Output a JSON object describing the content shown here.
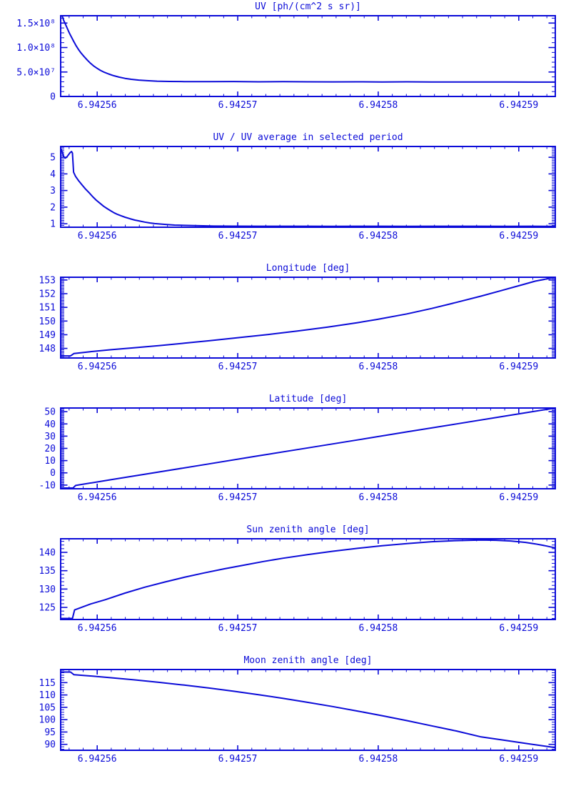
{
  "page": {
    "background": "#ffffff",
    "accent": "#0b0bd8",
    "plot_count": 6
  },
  "axes_shared": {
    "xlim": [
      6.9425574,
      6.9425926
    ],
    "x_major_ticks": [
      {
        "v": 6.94256,
        "label": "6.94256"
      },
      {
        "v": 6.94257,
        "label": "6.94257"
      },
      {
        "v": 6.94258,
        "label": "6.94258"
      },
      {
        "v": 6.94259,
        "label": "6.94259"
      }
    ],
    "x_minor_step": 1e-06
  },
  "chart_data": [
    {
      "type": "line",
      "title": "UV [ph/(cm^2 s sr)]",
      "xlabel": "",
      "ylabel": "",
      "xlim": [
        6.9425574,
        6.9425926
      ],
      "ylim": [
        0,
        165000000
      ],
      "grid": false,
      "legend": "none",
      "yticks": [
        {
          "v": 0,
          "label": "0"
        },
        {
          "v": 50000000,
          "label": "5.0×10⁷"
        },
        {
          "v": 100000000,
          "label": "1.0×10⁸"
        },
        {
          "v": 150000000,
          "label": "1.5×10⁸"
        }
      ],
      "y_minor_step": 10000000,
      "series": [
        {
          "name": "UV",
          "points": [
            [
              6.9425575,
              165000000
            ],
            [
              6.94255761,
              156000000
            ],
            [
              6.94255775,
              147000000
            ],
            [
              6.94255789,
              138000000
            ],
            [
              6.94255803,
              129000000
            ],
            [
              6.94255817,
              121000000
            ],
            [
              6.94255832,
              113000000
            ],
            [
              6.94255849,
              104000000
            ],
            [
              6.94255867,
              96000000
            ],
            [
              6.94255884,
              89000000
            ],
            [
              6.94255905,
              82000000
            ],
            [
              6.94255927,
              75000000
            ],
            [
              6.94255948,
              69000000
            ],
            [
              6.94255972,
              63000000
            ],
            [
              6.94255997,
              58000000
            ],
            [
              6.94256022,
              53500000
            ],
            [
              6.9425605,
              49500000
            ],
            [
              6.94256081,
              46000000
            ],
            [
              6.94256117,
              42500000
            ],
            [
              6.94256155,
              39500000
            ],
            [
              6.94256198,
              37000000
            ],
            [
              6.94256243,
              35000000
            ],
            [
              6.94256296,
              33500000
            ],
            [
              6.94256356,
              32200000
            ],
            [
              6.94256426,
              31300000
            ],
            [
              6.94256514,
              30700000
            ],
            [
              6.9425662,
              30400000
            ],
            [
              6.94256796,
              30200000
            ],
            [
              6.94256972,
              30500000
            ],
            [
              6.94257148,
              30000000
            ],
            [
              6.94257324,
              30300000
            ],
            [
              6.942575,
              30000000
            ],
            [
              6.94257676,
              29800000
            ],
            [
              6.94257852,
              30000000
            ],
            [
              6.94258028,
              29700000
            ],
            [
              6.94258204,
              29900000
            ],
            [
              6.9425838,
              29600000
            ],
            [
              6.94258556,
              29700000
            ],
            [
              6.94258732,
              29500000
            ],
            [
              6.94258908,
              29600000
            ],
            [
              6.94259084,
              29400000
            ],
            [
              6.9425926,
              29300000
            ]
          ]
        }
      ]
    },
    {
      "type": "line",
      "title": "UV / UV average in selected period",
      "xlabel": "",
      "ylabel": "",
      "xlim": [
        6.9425574,
        6.9425926
      ],
      "ylim": [
        0.79,
        5.65
      ],
      "grid": false,
      "legend": "none",
      "yticks": [
        {
          "v": 1,
          "label": "1"
        },
        {
          "v": 2,
          "label": "2"
        },
        {
          "v": 3,
          "label": "3"
        },
        {
          "v": 4,
          "label": "4"
        },
        {
          "v": 5,
          "label": "5"
        }
      ],
      "y_minor_step": 0.1,
      "series": [
        {
          "name": "UV ratio",
          "points": [
            [
              6.9425574,
              5.55
            ],
            [
              6.94255751,
              5.3
            ],
            [
              6.94255761,
              5.05
            ],
            [
              6.94255772,
              4.95
            ],
            [
              6.94255782,
              5.0
            ],
            [
              6.94255793,
              5.12
            ],
            [
              6.94255807,
              5.28
            ],
            [
              6.94255817,
              5.35
            ],
            [
              6.94255824,
              5.25
            ],
            [
              6.94255832,
              4.1
            ],
            [
              6.94255846,
              3.85
            ],
            [
              6.94255867,
              3.6
            ],
            [
              6.94255891,
              3.35
            ],
            [
              6.94255916,
              3.1
            ],
            [
              6.94255944,
              2.85
            ],
            [
              6.94255969,
              2.62
            ],
            [
              6.94255993,
              2.42
            ],
            [
              6.94256022,
              2.22
            ],
            [
              6.94256046,
              2.05
            ],
            [
              6.94256071,
              1.91
            ],
            [
              6.94256096,
              1.78
            ],
            [
              6.9425612,
              1.66
            ],
            [
              6.94256145,
              1.56
            ],
            [
              6.94256173,
              1.47
            ],
            [
              6.94256198,
              1.39
            ],
            [
              6.94256233,
              1.3
            ],
            [
              6.94256268,
              1.22
            ],
            [
              6.94256303,
              1.16
            ],
            [
              6.94256338,
              1.1
            ],
            [
              6.94256374,
              1.05
            ],
            [
              6.94256409,
              1.01
            ],
            [
              6.94256479,
              0.96
            ],
            [
              6.9425655,
              0.92
            ],
            [
              6.9425662,
              0.9
            ],
            [
              6.94256726,
              0.88
            ],
            [
              6.94256831,
              0.86
            ],
            [
              6.94256972,
              0.855
            ],
            [
              6.94257148,
              0.85
            ],
            [
              6.94257324,
              0.85
            ],
            [
              6.942575,
              0.85
            ],
            [
              6.94257676,
              0.84
            ],
            [
              6.94257852,
              0.85
            ],
            [
              6.94258028,
              0.85
            ],
            [
              6.94258204,
              0.84
            ],
            [
              6.9425838,
              0.85
            ],
            [
              6.94258556,
              0.85
            ],
            [
              6.94258732,
              0.85
            ],
            [
              6.94258908,
              0.84
            ],
            [
              6.94259084,
              0.85
            ],
            [
              6.9425926,
              0.84
            ]
          ]
        }
      ]
    },
    {
      "type": "line",
      "title": "Longitude [deg]",
      "xlabel": "",
      "ylabel": "",
      "xlim": [
        6.9425574,
        6.9425926
      ],
      "ylim": [
        147.3,
        153.2
      ],
      "grid": false,
      "legend": "none",
      "yticks": [
        {
          "v": 148,
          "label": "148"
        },
        {
          "v": 149,
          "label": "149"
        },
        {
          "v": 150,
          "label": "150"
        },
        {
          "v": 151,
          "label": "151"
        },
        {
          "v": 152,
          "label": "152"
        },
        {
          "v": 153,
          "label": "153"
        }
      ],
      "y_minor_step": 0.1,
      "series": [
        {
          "name": "Longitude",
          "points": [
            [
              6.9425574,
              147.45
            ],
            [
              6.9425581,
              147.45
            ],
            [
              6.94255835,
              147.63
            ],
            [
              6.94255951,
              147.76
            ],
            [
              6.94256092,
              147.9
            ],
            [
              6.94256268,
              148.05
            ],
            [
              6.94256444,
              148.21
            ],
            [
              6.9425662,
              148.38
            ],
            [
              6.94256796,
              148.56
            ],
            [
              6.94257007,
              148.79
            ],
            [
              6.94257218,
              149.02
            ],
            [
              6.9425743,
              149.28
            ],
            [
              6.94257641,
              149.56
            ],
            [
              6.94257852,
              149.88
            ],
            [
              6.94257993,
              150.12
            ],
            [
              6.94258204,
              150.52
            ],
            [
              6.9425838,
              150.92
            ],
            [
              6.94258556,
              151.36
            ],
            [
              6.94258732,
              151.82
            ],
            [
              6.94258873,
              152.22
            ],
            [
              6.94259014,
              152.62
            ],
            [
              6.94259119,
              152.92
            ],
            [
              6.9425919,
              153.06
            ],
            [
              6.9425926,
              153.2
            ]
          ]
        }
      ]
    },
    {
      "type": "line",
      "title": "Latitude [deg]",
      "xlabel": "",
      "ylabel": "",
      "xlim": [
        6.9425574,
        6.9425926
      ],
      "ylim": [
        -13,
        53
      ],
      "grid": false,
      "legend": "none",
      "yticks": [
        {
          "v": -10,
          "label": "-10"
        },
        {
          "v": 0,
          "label": "0"
        },
        {
          "v": 10,
          "label": "10"
        },
        {
          "v": 20,
          "label": "20"
        },
        {
          "v": 30,
          "label": "30"
        },
        {
          "v": 40,
          "label": "40"
        },
        {
          "v": 50,
          "label": "50"
        }
      ],
      "y_minor_step": 1,
      "series": [
        {
          "name": "Latitude",
          "points": [
            [
              6.9425574,
              -12.4
            ],
            [
              6.94255828,
              -12.4
            ],
            [
              6.94255846,
              -10.3
            ],
            [
              6.94256092,
              -5.7
            ],
            [
              6.94256444,
              0.8
            ],
            [
              6.94256796,
              7.3
            ],
            [
              6.94257148,
              13.9
            ],
            [
              6.942575,
              20.4
            ],
            [
              6.94257852,
              26.9
            ],
            [
              6.94258204,
              33.5
            ],
            [
              6.94258556,
              40.0
            ],
            [
              6.94258908,
              46.5
            ],
            [
              6.9425926,
              53.0
            ]
          ]
        }
      ]
    },
    {
      "type": "line",
      "title": "Sun zenith angle [deg]",
      "xlabel": "",
      "ylabel": "",
      "xlim": [
        6.9425574,
        6.9425926
      ],
      "ylim": [
        121.7,
        143.7
      ],
      "grid": false,
      "legend": "none",
      "yticks": [
        {
          "v": 125,
          "label": "125"
        },
        {
          "v": 130,
          "label": "130"
        },
        {
          "v": 135,
          "label": "135"
        },
        {
          "v": 140,
          "label": "140"
        }
      ],
      "y_minor_step": 1,
      "series": [
        {
          "name": "Sun zenith angle",
          "points": [
            [
              6.9425574,
              122.0
            ],
            [
              6.94255824,
              122.0
            ],
            [
              6.94255839,
              124.3
            ],
            [
              6.94255951,
              125.9
            ],
            [
              6.94256057,
              127.1
            ],
            [
              6.94256198,
              128.9
            ],
            [
              6.94256338,
              130.5
            ],
            [
              6.94256479,
              131.9
            ],
            [
              6.9425662,
              133.2
            ],
            [
              6.94256761,
              134.4
            ],
            [
              6.94256902,
              135.5
            ],
            [
              6.94257042,
              136.5
            ],
            [
              6.94257183,
              137.5
            ],
            [
              6.94257324,
              138.4
            ],
            [
              6.942575,
              139.4
            ],
            [
              6.94257676,
              140.3
            ],
            [
              6.94257852,
              141.1
            ],
            [
              6.94258028,
              141.8
            ],
            [
              6.94258204,
              142.4
            ],
            [
              6.9425838,
              142.9
            ],
            [
              6.94258556,
              143.2
            ],
            [
              6.94258732,
              143.35
            ],
            [
              6.94258838,
              143.3
            ],
            [
              6.94258943,
              143.1
            ],
            [
              6.94259049,
              142.7
            ],
            [
              6.94259119,
              142.3
            ],
            [
              6.9425919,
              141.8
            ],
            [
              6.9425926,
              141.2
            ]
          ]
        }
      ]
    },
    {
      "type": "line",
      "title": "Moon zenith angle [deg]",
      "xlabel": "",
      "ylabel": "",
      "xlim": [
        6.9425574,
        6.9425926
      ],
      "ylim": [
        87.6,
        120.3
      ],
      "grid": false,
      "legend": "none",
      "yticks": [
        {
          "v": 90,
          "label": "90"
        },
        {
          "v": 95,
          "label": "95"
        },
        {
          "v": 100,
          "label": "100"
        },
        {
          "v": 105,
          "label": "105"
        },
        {
          "v": 110,
          "label": "110"
        },
        {
          "v": 115,
          "label": "115"
        }
      ],
      "y_minor_step": 1,
      "series": [
        {
          "name": "Moon zenith angle",
          "points": [
            [
              6.9425574,
              119.3
            ],
            [
              6.9425581,
              119.3
            ],
            [
              6.94255835,
              118.2
            ],
            [
              6.94255951,
              117.7
            ],
            [
              6.94256092,
              117.0
            ],
            [
              6.94256268,
              116.1
            ],
            [
              6.94256444,
              115.1
            ],
            [
              6.9425662,
              114.0
            ],
            [
              6.94256796,
              112.8
            ],
            [
              6.94256972,
              111.5
            ],
            [
              6.94257148,
              110.1
            ],
            [
              6.94257324,
              108.6
            ],
            [
              6.942575,
              107.0
            ],
            [
              6.94257676,
              105.3
            ],
            [
              6.94257852,
              103.5
            ],
            [
              6.94258028,
              101.6
            ],
            [
              6.94258204,
              99.6
            ],
            [
              6.9425838,
              97.5
            ],
            [
              6.94258556,
              95.4
            ],
            [
              6.94258732,
              93.0
            ],
            [
              6.94258908,
              91.6
            ],
            [
              6.94259084,
              90.1
            ],
            [
              6.9425926,
              88.7
            ]
          ]
        }
      ]
    }
  ]
}
